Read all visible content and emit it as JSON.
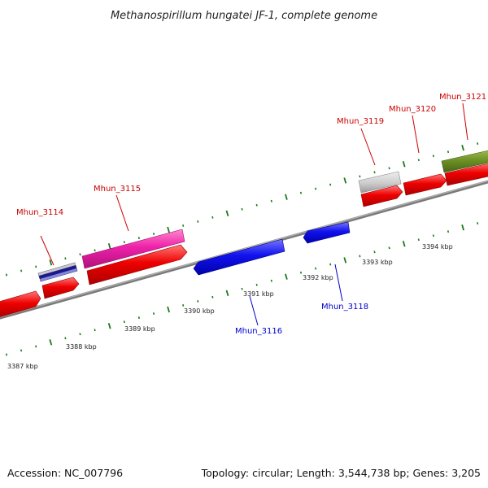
{
  "title": "Methanospirillum hungatei JF-1, complete genome",
  "footer": {
    "accession": "Accession: NC_007796",
    "summary": "Topology: circular; Length: 3,544,738 bp; Genes: 3,205"
  },
  "colors": {
    "background": "#ffffff",
    "backbone": "#888888",
    "tick_mark": "#1a7a1a",
    "label_forward": "#cc0000",
    "label_reverse": "#0000cc",
    "cds_forward": "#ee0000",
    "cds_reverse": "#1111ee",
    "gene_magenta": "#ee22aa",
    "gene_navy": "#1a1a8a",
    "gene_grey": "#cccccc",
    "gene_olive": "#6b8e23"
  },
  "ticks": [
    {
      "label": "3387 kbp"
    },
    {
      "label": "3388 kbp"
    },
    {
      "label": "3389 kbp"
    },
    {
      "label": "3390 kbp"
    },
    {
      "label": "3391 kbp"
    },
    {
      "label": "3392 kbp"
    },
    {
      "label": "3393 kbp"
    },
    {
      "label": "3394 kbp"
    }
  ],
  "gene_labels": [
    {
      "label": "Mhun_3114",
      "strand": "forward"
    },
    {
      "label": "Mhun_3115",
      "strand": "forward"
    },
    {
      "label": "Mhun_3116",
      "strand": "reverse"
    },
    {
      "label": "Mhun_3118",
      "strand": "reverse"
    },
    {
      "label": "Mhun_3119",
      "strand": "forward"
    },
    {
      "label": "Mhun_3120",
      "strand": "forward"
    },
    {
      "label": "Mhun_3121",
      "strand": "forward"
    }
  ]
}
